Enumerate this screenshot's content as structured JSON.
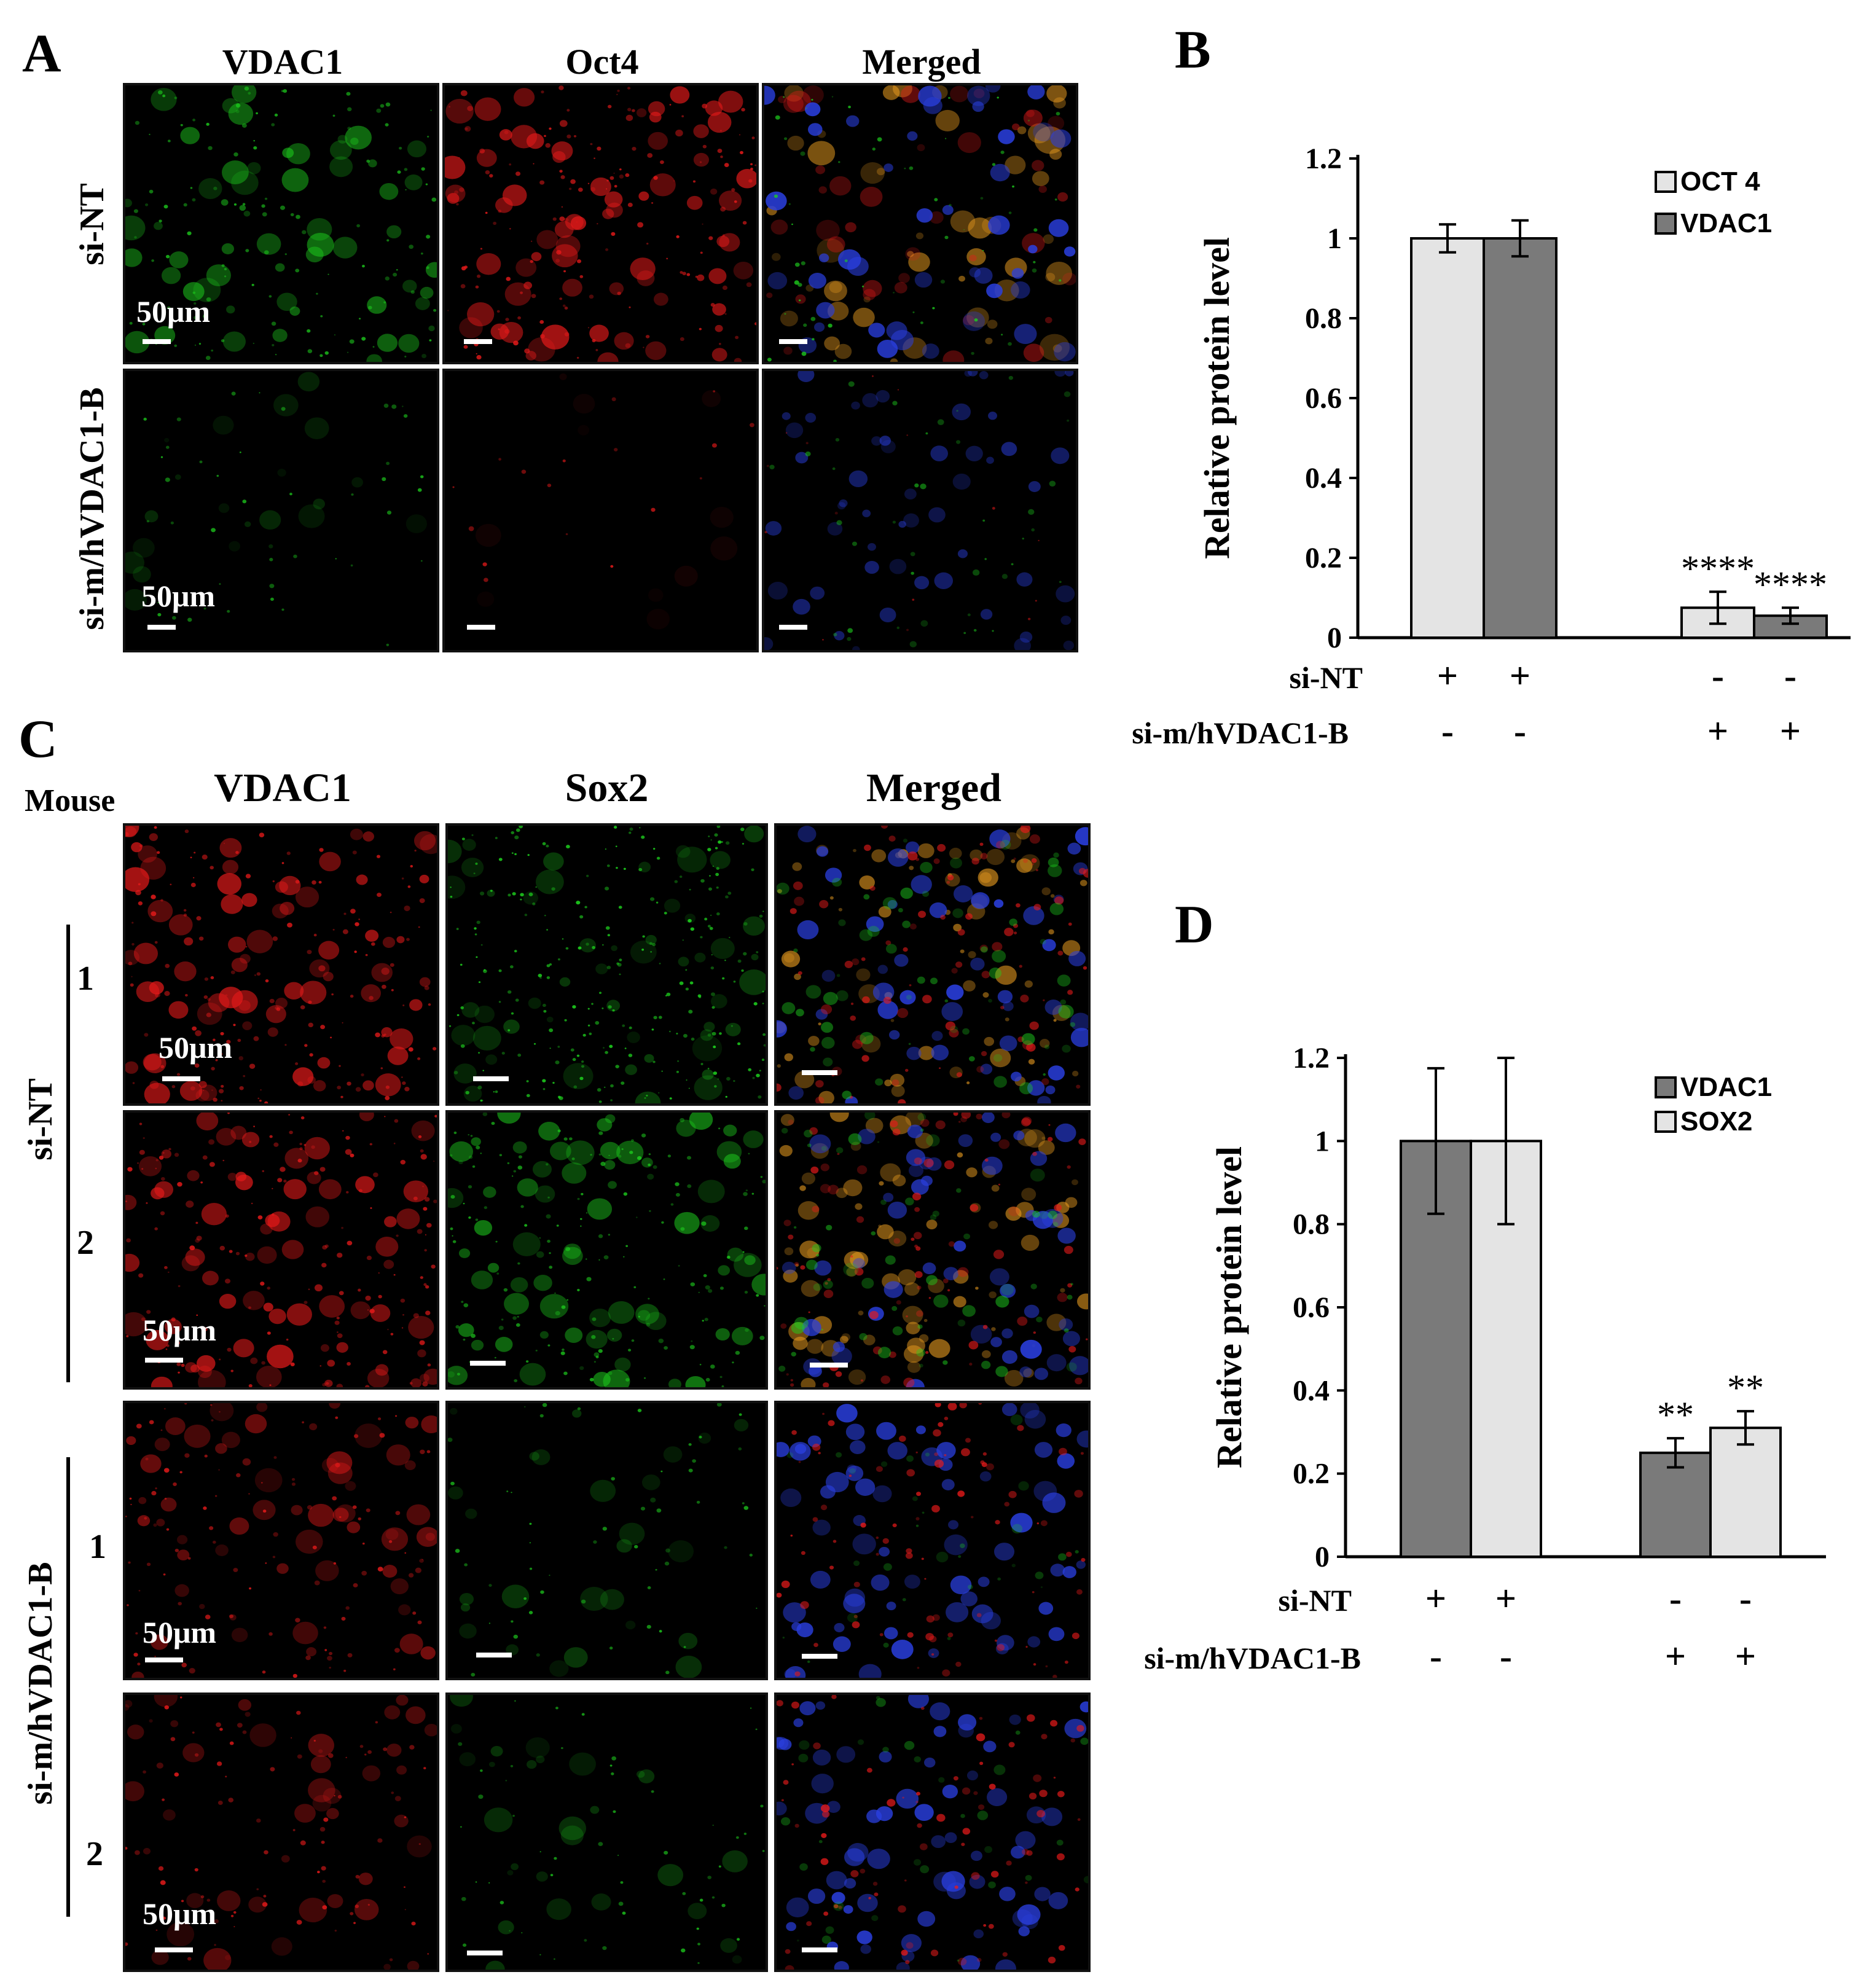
{
  "panels": {
    "A": {
      "letter": "A",
      "columns": [
        "VDAC1",
        "Oct4",
        "Merged"
      ],
      "rows": [
        "si-NT",
        "si-m/hVDAC1-B"
      ],
      "scale_label": "50μm"
    },
    "B": {
      "letter": "B"
    },
    "C": {
      "letter": "C",
      "mouse_label": "Mouse",
      "columns": [
        "VDAC1",
        "Sox2",
        "Merged"
      ],
      "groups": [
        "si-NT",
        "si-m/hVDAC1-B"
      ],
      "mouse_numbers": [
        "1",
        "2",
        "1",
        "2"
      ],
      "scale_label": "50μm"
    },
    "D": {
      "letter": "D"
    }
  },
  "colors": {
    "light_bar": "#e4e4e4",
    "dark_bar": "#7a7a7a",
    "green": "#1ed21e",
    "red": "#e81a1a",
    "blue": "#2a3fe0",
    "orange": "#f0a020"
  },
  "chart_data": [
    {
      "panel": "B",
      "type": "bar",
      "ylabel": "Relative protein level",
      "ylim": [
        0,
        1.2
      ],
      "yticks": [
        "0",
        "0.2",
        "0.4",
        "0.6",
        "0.8",
        "1",
        "1.2"
      ],
      "series": [
        {
          "name": "OCT 4",
          "color": "light",
          "values": [
            1.0,
            0.075
          ],
          "errors": [
            0.035,
            0.04
          ],
          "significance": [
            "",
            "****"
          ]
        },
        {
          "name": "VDAC1",
          "color": "dark",
          "values": [
            1.0,
            0.055
          ],
          "errors": [
            0.045,
            0.02
          ],
          "significance": [
            "",
            "****"
          ]
        }
      ],
      "conditions": [
        {
          "label": "si-NT",
          "marks": [
            "+",
            "+",
            "-",
            "-"
          ]
        },
        {
          "label": "si-m/hVDAC1-B",
          "marks": [
            "-",
            "-",
            "+",
            "+"
          ]
        }
      ],
      "legend_position": "top-right"
    },
    {
      "panel": "D",
      "type": "bar",
      "ylabel": "Relative protein level",
      "ylim": [
        0,
        1.2
      ],
      "yticks": [
        "0",
        "0.2",
        "0.4",
        "0.6",
        "0.8",
        "1",
        "1.2"
      ],
      "series": [
        {
          "name": "VDAC1",
          "color": "dark",
          "values": [
            1.0,
            0.25
          ],
          "errors": [
            0.175,
            0.035
          ],
          "significance": [
            "",
            "**"
          ]
        },
        {
          "name": "SOX2",
          "color": "light",
          "values": [
            1.0,
            0.31
          ],
          "errors": [
            0.2,
            0.04
          ],
          "significance": [
            "",
            "**"
          ]
        }
      ],
      "conditions": [
        {
          "label": "si-NT",
          "marks": [
            "+",
            "+",
            "-",
            "-"
          ]
        },
        {
          "label": "si-m/hVDAC1-B",
          "marks": [
            "-",
            "-",
            "+",
            "+"
          ]
        }
      ],
      "legend_position": "top-right"
    }
  ]
}
